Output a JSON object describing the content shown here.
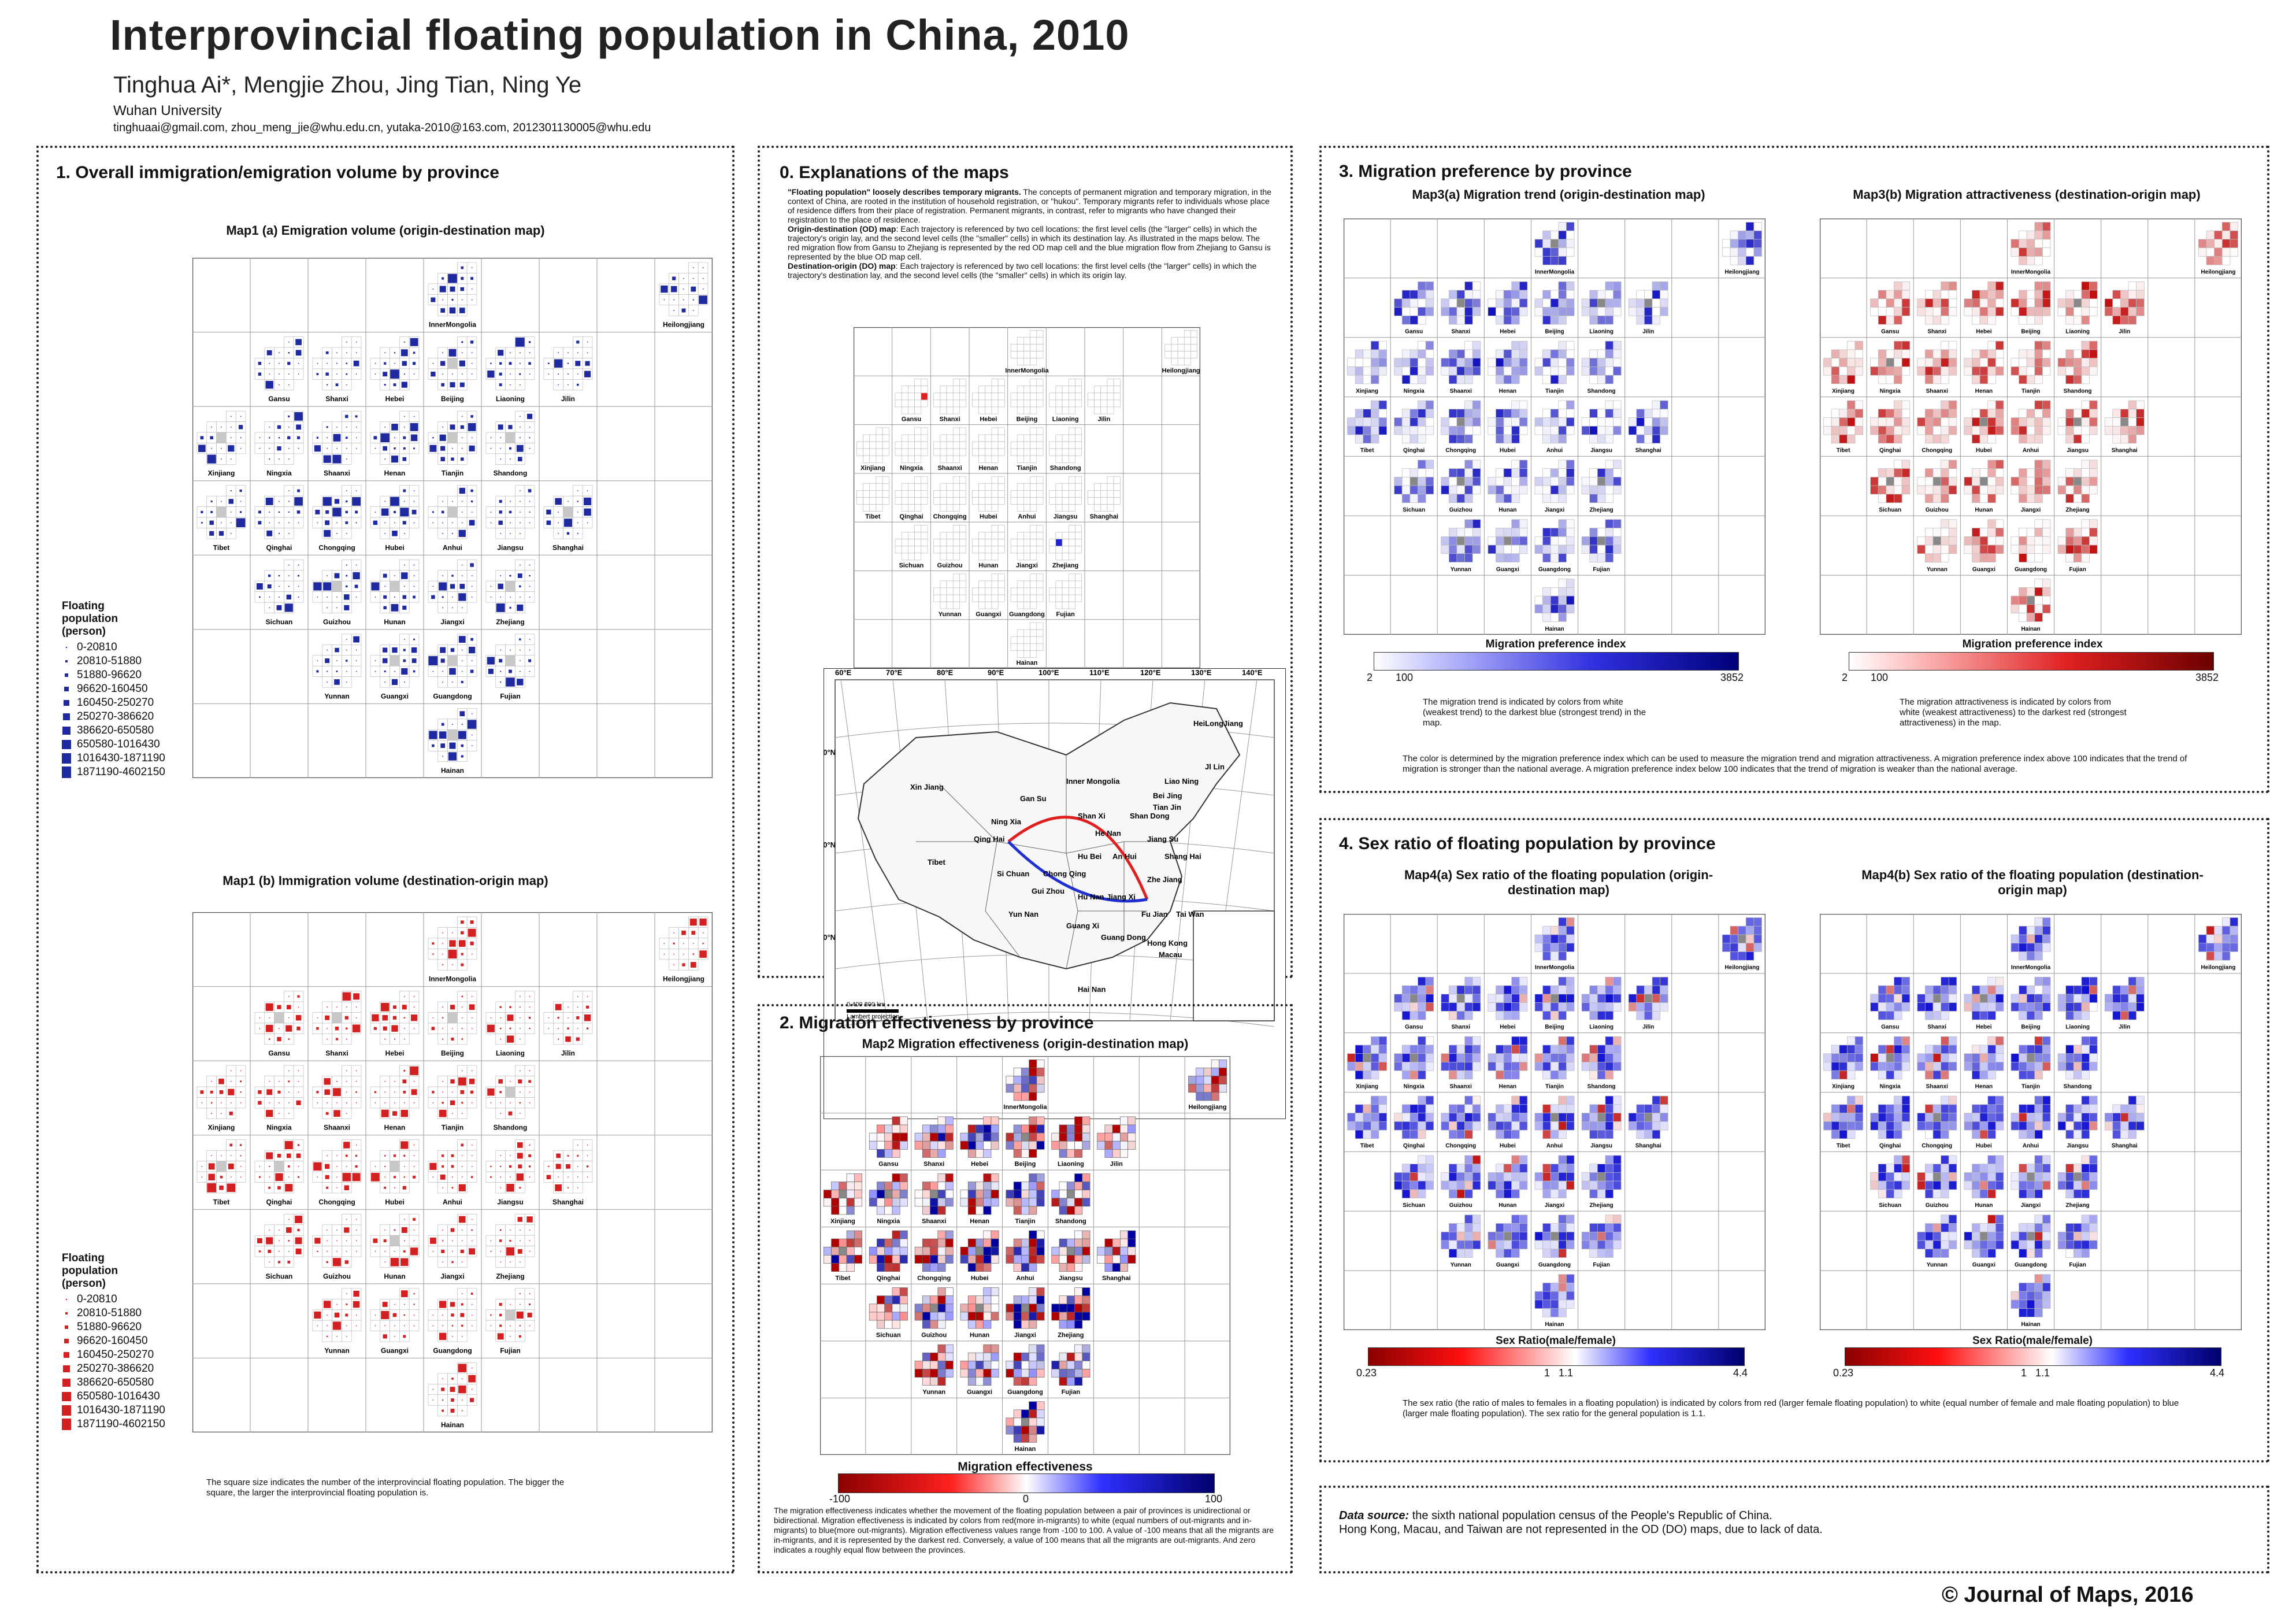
{
  "header": {
    "title": "Interprovincial floating population in China, 2010",
    "authors": "Tinghua Ai*, Mengjie Zhou, Jing Tian, Ning Ye",
    "affiliation": "Wuhan University",
    "emails": "tinghuaai@gmail.com, zhou_meng_jie@whu.edu.cn, yutaka-2010@163.com, 2012301130005@whu.edu"
  },
  "provinces": [
    {
      "name": "InnerMongolia",
      "col": 4,
      "row": 0
    },
    {
      "name": "Heilongjiang",
      "col": 8,
      "row": 0
    },
    {
      "name": "Gansu",
      "col": 1,
      "row": 1
    },
    {
      "name": "Shanxi",
      "col": 2,
      "row": 1
    },
    {
      "name": "Hebei",
      "col": 3,
      "row": 1
    },
    {
      "name": "Beijing",
      "col": 4,
      "row": 1
    },
    {
      "name": "Liaoning",
      "col": 5,
      "row": 1
    },
    {
      "name": "Jilin",
      "col": 6,
      "row": 1
    },
    {
      "name": "Xinjiang",
      "col": 0,
      "row": 2
    },
    {
      "name": "Ningxia",
      "col": 1,
      "row": 2
    },
    {
      "name": "Shaanxi",
      "col": 2,
      "row": 2
    },
    {
      "name": "Henan",
      "col": 3,
      "row": 2
    },
    {
      "name": "Tianjin",
      "col": 4,
      "row": 2
    },
    {
      "name": "Shandong",
      "col": 5,
      "row": 2
    },
    {
      "name": "Tibet",
      "col": 0,
      "row": 3
    },
    {
      "name": "Qinghai",
      "col": 1,
      "row": 3
    },
    {
      "name": "Chongqing",
      "col": 2,
      "row": 3
    },
    {
      "name": "Hubei",
      "col": 3,
      "row": 3
    },
    {
      "name": "Anhui",
      "col": 4,
      "row": 3
    },
    {
      "name": "Jiangsu",
      "col": 5,
      "row": 3
    },
    {
      "name": "Shanghai",
      "col": 6,
      "row": 3
    },
    {
      "name": "Sichuan",
      "col": 1,
      "row": 4
    },
    {
      "name": "Guizhou",
      "col": 2,
      "row": 4
    },
    {
      "name": "Hunan",
      "col": 3,
      "row": 4
    },
    {
      "name": "Jiangxi",
      "col": 4,
      "row": 4
    },
    {
      "name": "Zhejiang",
      "col": 5,
      "row": 4
    },
    {
      "name": "Yunnan",
      "col": 2,
      "row": 5
    },
    {
      "name": "Guangxi",
      "col": 3,
      "row": 5
    },
    {
      "name": "Guangdong",
      "col": 4,
      "row": 5
    },
    {
      "name": "Fujian",
      "col": 5,
      "row": 5
    },
    {
      "name": "Hainan",
      "col": 4,
      "row": 6
    }
  ],
  "section1": {
    "title": "1. Overall immigration/emigration volume by province",
    "map1a_title": "Map1 (a) Emigration volume (origin-destination map)",
    "map1b_title": "Map1 (b) Immigration volume (destination-origin map)",
    "legend_title": "Floating population (person)",
    "legend_items": [
      "0-20810",
      "20810-51880",
      "51880-96620",
      "96620-160450",
      "160450-250270",
      "250270-386620",
      "386620-650580",
      "650580-1016430",
      "1016430-1871190",
      "1871190-4602150"
    ],
    "note": "The square size indicates the number of the interprovincial floating population. The bigger the square, the larger the interprovincial floating population is.",
    "colors": {
      "emigration": "#1f2aa0",
      "immigration": "#d42020"
    }
  },
  "section0": {
    "title": "0. Explanations of the maps",
    "text_intro_bold": "\"Floating population\" loosely describes temporary migrants.",
    "text_intro": " The concepts of permanent migration and temporary migration, in the context of China, are rooted in the institution of household registration, or \"hukou\". Temporary migrants refer to individuals whose place of residence differs from their place of registration. Permanent migrants, in contrast, refer to migrants who have changed their registration to the place of residence.",
    "text_od_bold": "Origin-destination (OD) map",
    "text_od": ": Each trajectory is referenced by two cell locations: the first level cells (the \"larger\" cells) in which the trajectory's origin lay, and the second level cells (the \"smaller\" cells) in which its destination lay. As illustrated in the maps below. The red migration flow from Gansu to Zhejiang is represented by the red OD map cell and the blue migration flow from Zhejiang to Gansu is represented by the blue OD map cell.",
    "text_do_bold": "Destination-origin (DO) map",
    "text_do": ": Each trajectory is referenced by two cell locations: the first level cells (the \"larger\" cells) in which the trajectory's destination lay, and the second level cells (the \"smaller\" cells) in which its origin lay.",
    "longitudes": [
      "60°E",
      "70°E",
      "80°E",
      "90°E",
      "100°E",
      "110°E",
      "120°E",
      "130°E",
      "140°E"
    ],
    "latitudes": [
      "40°N",
      "30°N",
      "20°N"
    ],
    "scale": "0   400   800 km",
    "projection": "Lambert projection",
    "map_labels": [
      "HeiLongJiang",
      "Jl Lin",
      "Xin Jiang",
      "Inner Mongolia",
      "Liao Ning",
      "Bei Jing",
      "Tian Jin",
      "Gan Su",
      "Shan Dong",
      "Ning Xia",
      "Qing Hai",
      "Shan Xi",
      "He Nan",
      "Tibet",
      "Jiang Su",
      "Hu Bei",
      "An Hui",
      "Shang Hai",
      "Si Chuan",
      "Chong Qing",
      "Zhe Jiang",
      "Gui Zhou",
      "Hu Nan",
      "Jiang Xi",
      "Fu Jian",
      "Yun Nan",
      "Guang Xi",
      "Guang Dong",
      "Tai Wan",
      "Hong Kong",
      "Macau",
      "Hai Nan"
    ]
  },
  "section2": {
    "title": "2. Migration effectiveness by province",
    "map_title": "Map2 Migration effectiveness (origin-destination map)",
    "bar_title": "Migration  effectiveness",
    "ticks": [
      "-100",
      "0",
      "100"
    ],
    "note": "The migration effectiveness indicates whether the movement of the floating population between a pair of provinces is unidirectional or bidirectional. Migration effectiveness is indicated by colors from red(more in-migrants) to white (equal numbers of out-migrants and in-migrants) to blue(more out-migrants). Migration effectiveness values range from -100 to 100. A value of -100 means that all the migrants are in-migrants, and it is represented by the darkest red. Conversely, a value of 100 means that all the migrants are out-migrants. And zero indicates a roughly equal flow between the provinces."
  },
  "section3": {
    "title": "3. Migration preference by province",
    "map3a_title": "Map3(a) Migration trend (origin-destination map)",
    "map3b_title": "Map3(b) Migration attractiveness (destination-origin map)",
    "bar_title": "Migration preference index",
    "ticks": [
      "2",
      "100",
      "3852"
    ],
    "note_a": "The migration trend is indicated by colors from white (weakest trend) to the darkest blue (strongest trend) in the map.",
    "note_b": "The migration attractiveness is indicated by colors from white (weakest attractiveness) to the darkest red (strongest attractiveness) in the map.",
    "note_c": "The color is determined by the migration preference index which can be used to measure the migration trend and migration attractiveness. A migration preference index above 100 indicates that the trend of migration is stronger than the national average. A migration preference index below 100 indicates that the trend of migration is weaker than the national average."
  },
  "section4": {
    "title": "4. Sex ratio of floating population by province",
    "map4a_title": "Map4(a) Sex ratio of the floating population (origin-destination map)",
    "map4b_title": "Map4(b) Sex ratio of the floating population (destination-origin map)",
    "bar_title": "Sex Ratio(male/female)",
    "ticks": [
      "0.23",
      "1",
      "1.1",
      "4.4"
    ],
    "note": "The sex ratio (the ratio of males to females in a floating population) is indicated by colors from red (larger female floating population) to white (equal number of female and male floating population) to blue (larger male floating population). The sex ratio for the general population is 1.1."
  },
  "source": {
    "label": "Data source:",
    "text": " the sixth national population census of the People's Republic of China.",
    "text2": "Hong Kong, Macau, and Taiwan are not represented in the OD (DO) maps, due to lack of data."
  },
  "copyright": "© Journal of Maps, 2016"
}
